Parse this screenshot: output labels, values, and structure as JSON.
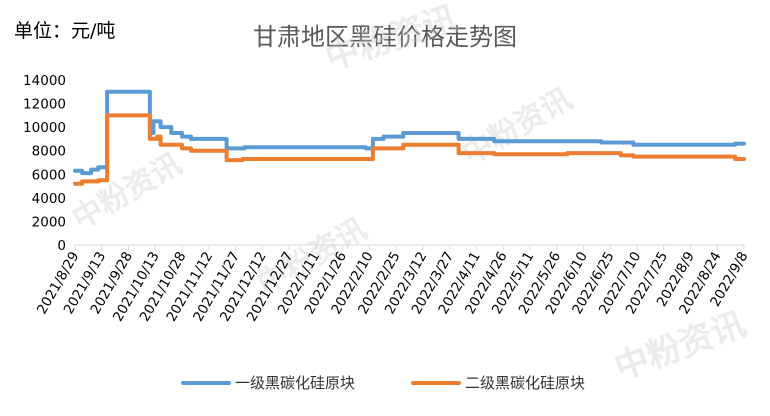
{
  "unit_label": "单位：元/吨",
  "watermark_text": "中粉资讯",
  "chart_data": {
    "type": "line",
    "title": "甘肃地区黑硅价格走势图",
    "xlabel": "",
    "ylabel": "",
    "ylim": [
      0,
      14000
    ],
    "yticks": [
      0,
      2000,
      4000,
      6000,
      8000,
      10000,
      12000,
      14000
    ],
    "x_start": "2021/8/29",
    "x_end": "2022/9/8",
    "xticks": [
      "2021/8/29",
      "2021/9/13",
      "2021/9/28",
      "2021/10/13",
      "2021/10/28",
      "2021/11/12",
      "2021/11/27",
      "2021/12/12",
      "2021/12/27",
      "2022/1/11",
      "2022/1/26",
      "2022/2/10",
      "2022/2/25",
      "2022/3/12",
      "2022/3/27",
      "2022/4/11",
      "2022/4/26",
      "2022/5/11",
      "2022/5/26",
      "2022/6/10",
      "2022/6/25",
      "2022/7/10",
      "2022/7/25",
      "2022/8/9",
      "2022/8/24",
      "2022/9/8"
    ],
    "grid": "none",
    "legend_position": "bottom",
    "series": [
      {
        "name": "一级黑碳化硅原块",
        "color": "#5B9BD5",
        "points": [
          [
            "2021/8/29",
            6300
          ],
          [
            "2021/9/2",
            6100
          ],
          [
            "2021/9/7",
            6400
          ],
          [
            "2021/9/11",
            6600
          ],
          [
            "2021/9/16",
            13000
          ],
          [
            "2021/10/10",
            9500
          ],
          [
            "2021/10/12",
            10500
          ],
          [
            "2021/10/16",
            10000
          ],
          [
            "2021/10/22",
            9500
          ],
          [
            "2021/10/28",
            9200
          ],
          [
            "2021/11/2",
            9000
          ],
          [
            "2021/11/22",
            8200
          ],
          [
            "2021/12/2",
            8300
          ],
          [
            "2022/2/8",
            8200
          ],
          [
            "2022/2/12",
            9000
          ],
          [
            "2022/2/18",
            9200
          ],
          [
            "2022/3/1",
            9500
          ],
          [
            "2022/4/1",
            9000
          ],
          [
            "2022/4/21",
            8800
          ],
          [
            "2022/6/1",
            8800
          ],
          [
            "2022/6/20",
            8700
          ],
          [
            "2022/7/8",
            8500
          ],
          [
            "2022/9/3",
            8600
          ],
          [
            "2022/9/8",
            8600
          ]
        ]
      },
      {
        "name": "二级黑碳化硅原块",
        "color": "#ED7D31",
        "points": [
          [
            "2021/8/29",
            5200
          ],
          [
            "2021/9/2",
            5400
          ],
          [
            "2021/9/11",
            5500
          ],
          [
            "2021/9/16",
            11000
          ],
          [
            "2021/10/10",
            9000
          ],
          [
            "2021/10/14",
            9200
          ],
          [
            "2021/10/16",
            8500
          ],
          [
            "2021/10/28",
            8200
          ],
          [
            "2021/11/2",
            8000
          ],
          [
            "2021/11/22",
            7200
          ],
          [
            "2021/12/1",
            7300
          ],
          [
            "2022/2/12",
            8200
          ],
          [
            "2022/3/1",
            8500
          ],
          [
            "2022/4/1",
            7800
          ],
          [
            "2022/4/21",
            7700
          ],
          [
            "2022/6/1",
            7800
          ],
          [
            "2022/7/1",
            7600
          ],
          [
            "2022/7/8",
            7500
          ],
          [
            "2022/9/3",
            7300
          ],
          [
            "2022/9/8",
            7300
          ]
        ]
      }
    ]
  }
}
